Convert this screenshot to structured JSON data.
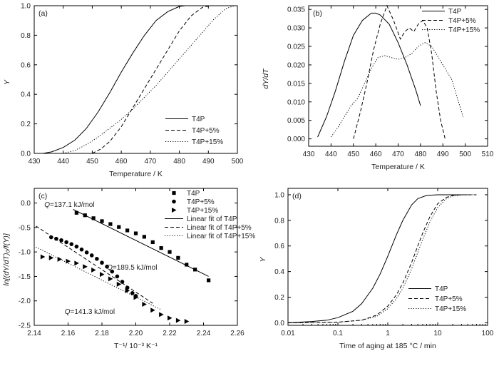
{
  "chart_data": [
    {
      "type": "line",
      "panel_label": "(a)",
      "xlabel": "Temperature / K",
      "ylabel": "Y",
      "xlim": [
        430,
        500
      ],
      "ylim": [
        0,
        1
      ],
      "xticks": [
        430,
        440,
        450,
        460,
        470,
        480,
        490,
        500
      ],
      "yticks": [
        0,
        0.2,
        0.4,
        0.6,
        0.8,
        1.0
      ],
      "xtick_labels": [
        "430",
        "440",
        "450",
        "460",
        "470",
        "480",
        "490",
        "500"
      ],
      "ytick_labels": [
        "0.0",
        "0.2",
        "0.4",
        "0.6",
        "0.8",
        "1.0"
      ],
      "legend_position": "bottom-right",
      "series": [
        {
          "name": "T4P",
          "style": "solid",
          "x": [
            433,
            436,
            440,
            444,
            448,
            452,
            456,
            460,
            464,
            468,
            472,
            476,
            480,
            482
          ],
          "y": [
            0.0,
            0.01,
            0.04,
            0.09,
            0.17,
            0.28,
            0.41,
            0.55,
            0.68,
            0.8,
            0.9,
            0.96,
            0.995,
            1.0
          ]
        },
        {
          "name": "T4P+5%",
          "style": "dashed",
          "x": [
            450,
            453,
            456,
            460,
            464,
            468,
            472,
            476,
            480,
            484,
            488,
            491
          ],
          "y": [
            0.0,
            0.03,
            0.08,
            0.18,
            0.31,
            0.44,
            0.57,
            0.7,
            0.83,
            0.93,
            0.99,
            1.0
          ]
        },
        {
          "name": "T4P+15%",
          "style": "dotted",
          "x": [
            440,
            444,
            448,
            452,
            456,
            460,
            464,
            468,
            472,
            476,
            480,
            484,
            488,
            492,
            496,
            499
          ],
          "y": [
            0.0,
            0.02,
            0.06,
            0.11,
            0.17,
            0.23,
            0.3,
            0.38,
            0.46,
            0.55,
            0.64,
            0.73,
            0.82,
            0.91,
            0.98,
            1.0
          ]
        }
      ]
    },
    {
      "type": "line",
      "panel_label": "(b)",
      "xlabel": "Temperature / K",
      "ylabel": "dY/dT",
      "xlim": [
        430,
        510
      ],
      "ylim": [
        -0.002,
        0.036
      ],
      "xticks": [
        430,
        440,
        450,
        460,
        470,
        480,
        490,
        500,
        510
      ],
      "yticks": [
        0,
        0.005,
        0.01,
        0.015,
        0.02,
        0.025,
        0.03,
        0.035
      ],
      "xtick_labels": [
        "430",
        "440",
        "450",
        "460",
        "470",
        "480",
        "490",
        "500",
        "510"
      ],
      "ytick_labels": [
        "0.000",
        "0.005",
        "0.010",
        "0.015",
        "0.020",
        "0.025",
        "0.030",
        "0.035"
      ],
      "legend_position": "top-right",
      "series": [
        {
          "name": "T4P",
          "style": "solid",
          "x": [
            434,
            438,
            442,
            446,
            450,
            454,
            458,
            460,
            462,
            466,
            470,
            474,
            478,
            480
          ],
          "y": [
            0.0005,
            0.006,
            0.013,
            0.021,
            0.028,
            0.032,
            0.034,
            0.034,
            0.0335,
            0.031,
            0.026,
            0.02,
            0.013,
            0.009
          ]
        },
        {
          "name": "T4P+5%",
          "style": "dashed",
          "x": [
            450,
            453,
            456,
            459,
            462,
            465,
            468,
            471,
            473,
            475,
            477,
            479,
            481,
            483,
            485,
            487,
            489,
            491
          ],
          "y": [
            0.0,
            0.007,
            0.015,
            0.024,
            0.031,
            0.036,
            0.032,
            0.027,
            0.029,
            0.03,
            0.029,
            0.031,
            0.032,
            0.03,
            0.023,
            0.013,
            0.005,
            0.0
          ]
        },
        {
          "name": "T4P+15%",
          "style": "dotted",
          "x": [
            440,
            443,
            446,
            449,
            452,
            455,
            458,
            461,
            464,
            467,
            470,
            473,
            476,
            479,
            482,
            485,
            488,
            491,
            494,
            497,
            499
          ],
          "y": [
            0.0005,
            0.003,
            0.006,
            0.009,
            0.011,
            0.015,
            0.019,
            0.022,
            0.0225,
            0.022,
            0.0215,
            0.022,
            0.023,
            0.025,
            0.026,
            0.025,
            0.022,
            0.019,
            0.016,
            0.01,
            0.006
          ]
        }
      ]
    },
    {
      "type": "scatter",
      "panel_label": "(c)",
      "xlabel": "T⁻¹/ 10⁻³ K⁻¹",
      "ylabel": "ln[(dY/dT)₀/f(Y)]",
      "xlim": [
        2.14,
        2.26
      ],
      "ylim": [
        -2.5,
        0.3
      ],
      "xticks": [
        2.14,
        2.16,
        2.18,
        2.2,
        2.22,
        2.24,
        2.26
      ],
      "yticks": [
        -2.5,
        -2.0,
        -1.5,
        -1.0,
        -0.5,
        0.0
      ],
      "xtick_labels": [
        "2.14",
        "2.16",
        "2.18",
        "2.20",
        "2.22",
        "2.24",
        "2.26"
      ],
      "ytick_labels": [
        "-2.5",
        "-2.0",
        "-1.5",
        "-1.0",
        "-0.5",
        "0.0"
      ],
      "legend_position": "top-right",
      "series": [
        {
          "name": "T4P",
          "marker": "square",
          "x": [
            2.165,
            2.17,
            2.175,
            2.18,
            2.185,
            2.19,
            2.195,
            2.2,
            2.205,
            2.21,
            2.215,
            2.22,
            2.225,
            2.23,
            2.235,
            2.243
          ],
          "y": [
            -0.2,
            -0.25,
            -0.31,
            -0.37,
            -0.43,
            -0.49,
            -0.56,
            -0.62,
            -0.69,
            -0.8,
            -0.92,
            -1.0,
            -1.12,
            -1.26,
            -1.36,
            -1.58
          ]
        },
        {
          "name": "T4P+5%",
          "marker": "circle",
          "x": [
            2.15,
            2.153,
            2.156,
            2.159,
            2.162,
            2.165,
            2.168,
            2.171,
            2.174,
            2.177,
            2.18,
            2.183,
            2.186,
            2.189,
            2.192,
            2.195,
            2.198,
            2.2
          ],
          "y": [
            -0.7,
            -0.73,
            -0.76,
            -0.8,
            -0.84,
            -0.89,
            -0.95,
            -1.01,
            -1.07,
            -1.14,
            -1.22,
            -1.3,
            -1.4,
            -1.5,
            -1.61,
            -1.73,
            -1.84,
            -1.9
          ]
        },
        {
          "name": "T4P+15%",
          "marker": "triangle-right",
          "x": [
            2.145,
            2.15,
            2.155,
            2.16,
            2.165,
            2.17,
            2.175,
            2.18,
            2.185,
            2.19,
            2.195,
            2.2,
            2.205,
            2.21,
            2.215,
            2.22,
            2.225,
            2.23
          ],
          "y": [
            -1.1,
            -1.12,
            -1.15,
            -1.19,
            -1.23,
            -1.3,
            -1.37,
            -1.46,
            -1.55,
            -1.66,
            -1.79,
            -1.93,
            -2.07,
            -2.19,
            -2.28,
            -2.35,
            -2.4,
            -2.42
          ]
        },
        {
          "name": "Linear fit of T4P",
          "style": "solid",
          "x": [
            2.163,
            2.243
          ],
          "y": [
            -0.13,
            -1.5
          ]
        },
        {
          "name": "Linear fit of T4P+5%",
          "style": "dashed",
          "x": [
            2.141,
            2.21
          ],
          "y": [
            -0.47,
            -2.05
          ]
        },
        {
          "name": "Linear fit of T4P+15%",
          "style": "dotted",
          "x": [
            2.141,
            2.215
          ],
          "y": [
            -0.9,
            -2.18
          ]
        }
      ],
      "annotations": [
        {
          "q": "Q",
          "text": "=137.1 kJ/mol",
          "x": 2.146,
          "y": -0.08
        },
        {
          "q": "Q",
          "text": "=189.5 kJ/mol",
          "x": 2.183,
          "y": -1.36
        },
        {
          "q": "Q",
          "text": "=141.3 kJ/mol",
          "x": 2.158,
          "y": -2.27
        }
      ]
    },
    {
      "type": "line",
      "panel_label": "(d)",
      "xlabel": "Time of aging at 185 °C / min",
      "ylabel": "Y",
      "xscale": "log",
      "xlim": [
        0.01,
        100
      ],
      "ylim": [
        -0.02,
        1.05
      ],
      "xticks": [
        0.01,
        0.1,
        1,
        10,
        100
      ],
      "yticks": [
        0,
        0.2,
        0.4,
        0.6,
        0.8,
        1.0
      ],
      "xtick_labels": [
        "0.01",
        "0.1",
        "1",
        "10",
        "100"
      ],
      "ytick_labels": [
        "0.0",
        "0.2",
        "0.4",
        "0.6",
        "0.8",
        "1.0"
      ],
      "legend_position": "bottom-right",
      "series": [
        {
          "name": "T4P",
          "style": "solid",
          "x": [
            0.01,
            0.03,
            0.06,
            0.1,
            0.2,
            0.3,
            0.5,
            0.7,
            1.0,
            1.5,
            2,
            3,
            4,
            6,
            10,
            20,
            40
          ],
          "y": [
            0.0,
            0.01,
            0.02,
            0.04,
            0.09,
            0.15,
            0.27,
            0.38,
            0.52,
            0.69,
            0.8,
            0.92,
            0.97,
            0.995,
            1.0,
            1.0,
            1.0
          ]
        },
        {
          "name": "T4P+5%",
          "style": "dashed",
          "x": [
            0.01,
            0.1,
            0.3,
            0.6,
            1.0,
            1.5,
            2,
            3,
            4,
            5,
            7,
            10,
            15,
            20,
            30,
            60
          ],
          "y": [
            0.0,
            0.005,
            0.02,
            0.06,
            0.13,
            0.22,
            0.31,
            0.47,
            0.6,
            0.7,
            0.83,
            0.93,
            0.98,
            0.995,
            1.0,
            1.0
          ]
        },
        {
          "name": "T4P+15%",
          "style": "dotted",
          "x": [
            0.01,
            0.1,
            0.3,
            0.6,
            1.0,
            1.5,
            2,
            3,
            4,
            5,
            7,
            10,
            15,
            20,
            30,
            60
          ],
          "y": [
            0.0,
            0.004,
            0.02,
            0.05,
            0.11,
            0.19,
            0.27,
            0.42,
            0.55,
            0.65,
            0.79,
            0.9,
            0.97,
            0.99,
            1.0,
            1.0
          ]
        }
      ]
    }
  ]
}
